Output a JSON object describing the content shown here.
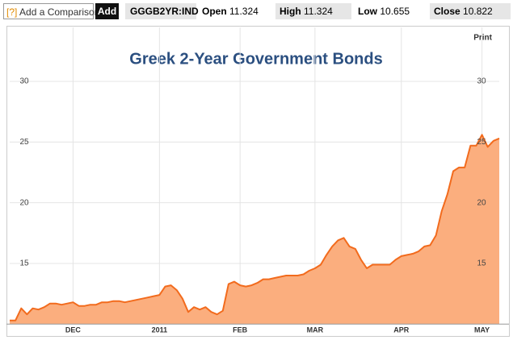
{
  "toolbar": {
    "help": "[?]",
    "comparison": "Add a Comparison",
    "add_button": "Add",
    "ticker": "GGGB2YR:IND",
    "open_label": "Open",
    "open_value": 11.324,
    "high_label": "High",
    "high_value": 11.324,
    "low_label": "Low",
    "low_value": 10.655,
    "close_label": "Close",
    "close_value": 10.822
  },
  "print": "Print",
  "chart_data": {
    "type": "area",
    "title": "Greek 2-Year Government Bonds",
    "categories": [
      null,
      null,
      null,
      null,
      null,
      null,
      null,
      null,
      null,
      null,
      null,
      "DEC",
      null,
      null,
      null,
      null,
      null,
      null,
      null,
      null,
      null,
      null,
      null,
      null,
      null,
      null,
      "2011",
      null,
      null,
      null,
      null,
      null,
      null,
      null,
      null,
      null,
      null,
      null,
      null,
      null,
      "FEB",
      null,
      null,
      null,
      null,
      null,
      null,
      null,
      null,
      null,
      null,
      null,
      null,
      "MAR",
      null,
      null,
      null,
      null,
      null,
      null,
      null,
      null,
      null,
      null,
      null,
      null,
      null,
      null,
      "APR",
      null,
      null,
      null,
      null,
      null,
      null,
      null,
      null,
      null,
      null,
      null,
      null,
      null,
      "MAY",
      null,
      null,
      null
    ],
    "series": [
      {
        "name": "GGGB2YR:IND",
        "color": "#f26b1d",
        "fill": "#fbae7e",
        "values": [
          10.3,
          10.3,
          11.3,
          10.8,
          11.3,
          11.2,
          11.4,
          11.7,
          11.7,
          11.6,
          11.7,
          11.8,
          11.5,
          11.5,
          11.6,
          11.6,
          11.8,
          11.8,
          11.9,
          11.9,
          11.8,
          11.9,
          12.0,
          12.1,
          12.2,
          12.3,
          12.4,
          13.1,
          13.2,
          12.8,
          12.1,
          11.0,
          11.4,
          11.2,
          11.4,
          11.0,
          10.8,
          11.1,
          13.3,
          13.5,
          13.2,
          13.1,
          13.2,
          13.4,
          13.7,
          13.7,
          13.8,
          13.9,
          14.0,
          14.0,
          14.0,
          14.1,
          14.4,
          14.6,
          14.9,
          15.7,
          16.4,
          16.9,
          17.1,
          16.4,
          16.2,
          15.3,
          14.6,
          14.9,
          14.9,
          14.9,
          14.9,
          15.3,
          15.6,
          15.7,
          15.8,
          16.0,
          16.4,
          16.5,
          17.3,
          19.3,
          20.7,
          22.6,
          22.9,
          22.9,
          24.7,
          24.7,
          25.6,
          24.6,
          25.1,
          25.3
        ]
      }
    ],
    "ylim": [
      10,
      34
    ],
    "yticks": [
      15,
      20,
      25,
      30
    ],
    "grid": true
  }
}
